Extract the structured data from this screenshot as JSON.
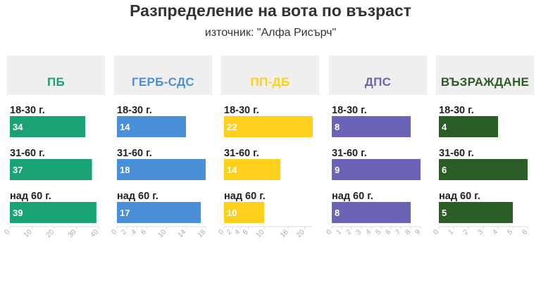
{
  "title": "Разпределение на вота по възраст",
  "subtitle": "източник: \"Алфа Рисърч\"",
  "chart_data": [
    {
      "type": "bar",
      "title": "ПБ",
      "color": "#1aa277",
      "categories": [
        "18-30 г.",
        "31-60 г.",
        "над 60 г."
      ],
      "values": [
        34,
        37,
        39
      ],
      "xlim": [
        0,
        40
      ],
      "ticks": [
        0,
        10,
        20,
        30,
        40
      ]
    },
    {
      "type": "bar",
      "title": "ГЕРБ-СДС",
      "color": "#4a90d9",
      "categories": [
        "18-30 г.",
        "31-60 г.",
        "над 60 г."
      ],
      "values": [
        14,
        18,
        17
      ],
      "xlim": [
        0,
        18
      ],
      "ticks": [
        0,
        2,
        4,
        6,
        10,
        14,
        18
      ]
    },
    {
      "type": "bar",
      "title": "ПП-ДБ",
      "color": "#fdd01c",
      "categories": [
        "18-30 г.",
        "31-60 г.",
        "над 60 г."
      ],
      "values": [
        22,
        14,
        10
      ],
      "xlim": [
        0,
        22
      ],
      "ticks": [
        0,
        2,
        4,
        6,
        10,
        16,
        20
      ]
    },
    {
      "type": "bar",
      "title": "ДПС",
      "color": "#6b64b6",
      "categories": [
        "18-30 г.",
        "31-60 г.",
        "над 60 г."
      ],
      "values": [
        8,
        9,
        8
      ],
      "xlim": [
        0,
        9
      ],
      "ticks": [
        0,
        1,
        2,
        3,
        4,
        5,
        6,
        7,
        8,
        9
      ]
    },
    {
      "type": "bar",
      "title": "ВЪЗРАЖДАНЕ",
      "color": "#2b5e24",
      "categories": [
        "18-30 г.",
        "31-60 г.",
        "над 60 г."
      ],
      "values": [
        4,
        6,
        5
      ],
      "xlim": [
        0,
        6
      ],
      "ticks": [
        0,
        1,
        2,
        3,
        4,
        5,
        6
      ]
    }
  ]
}
